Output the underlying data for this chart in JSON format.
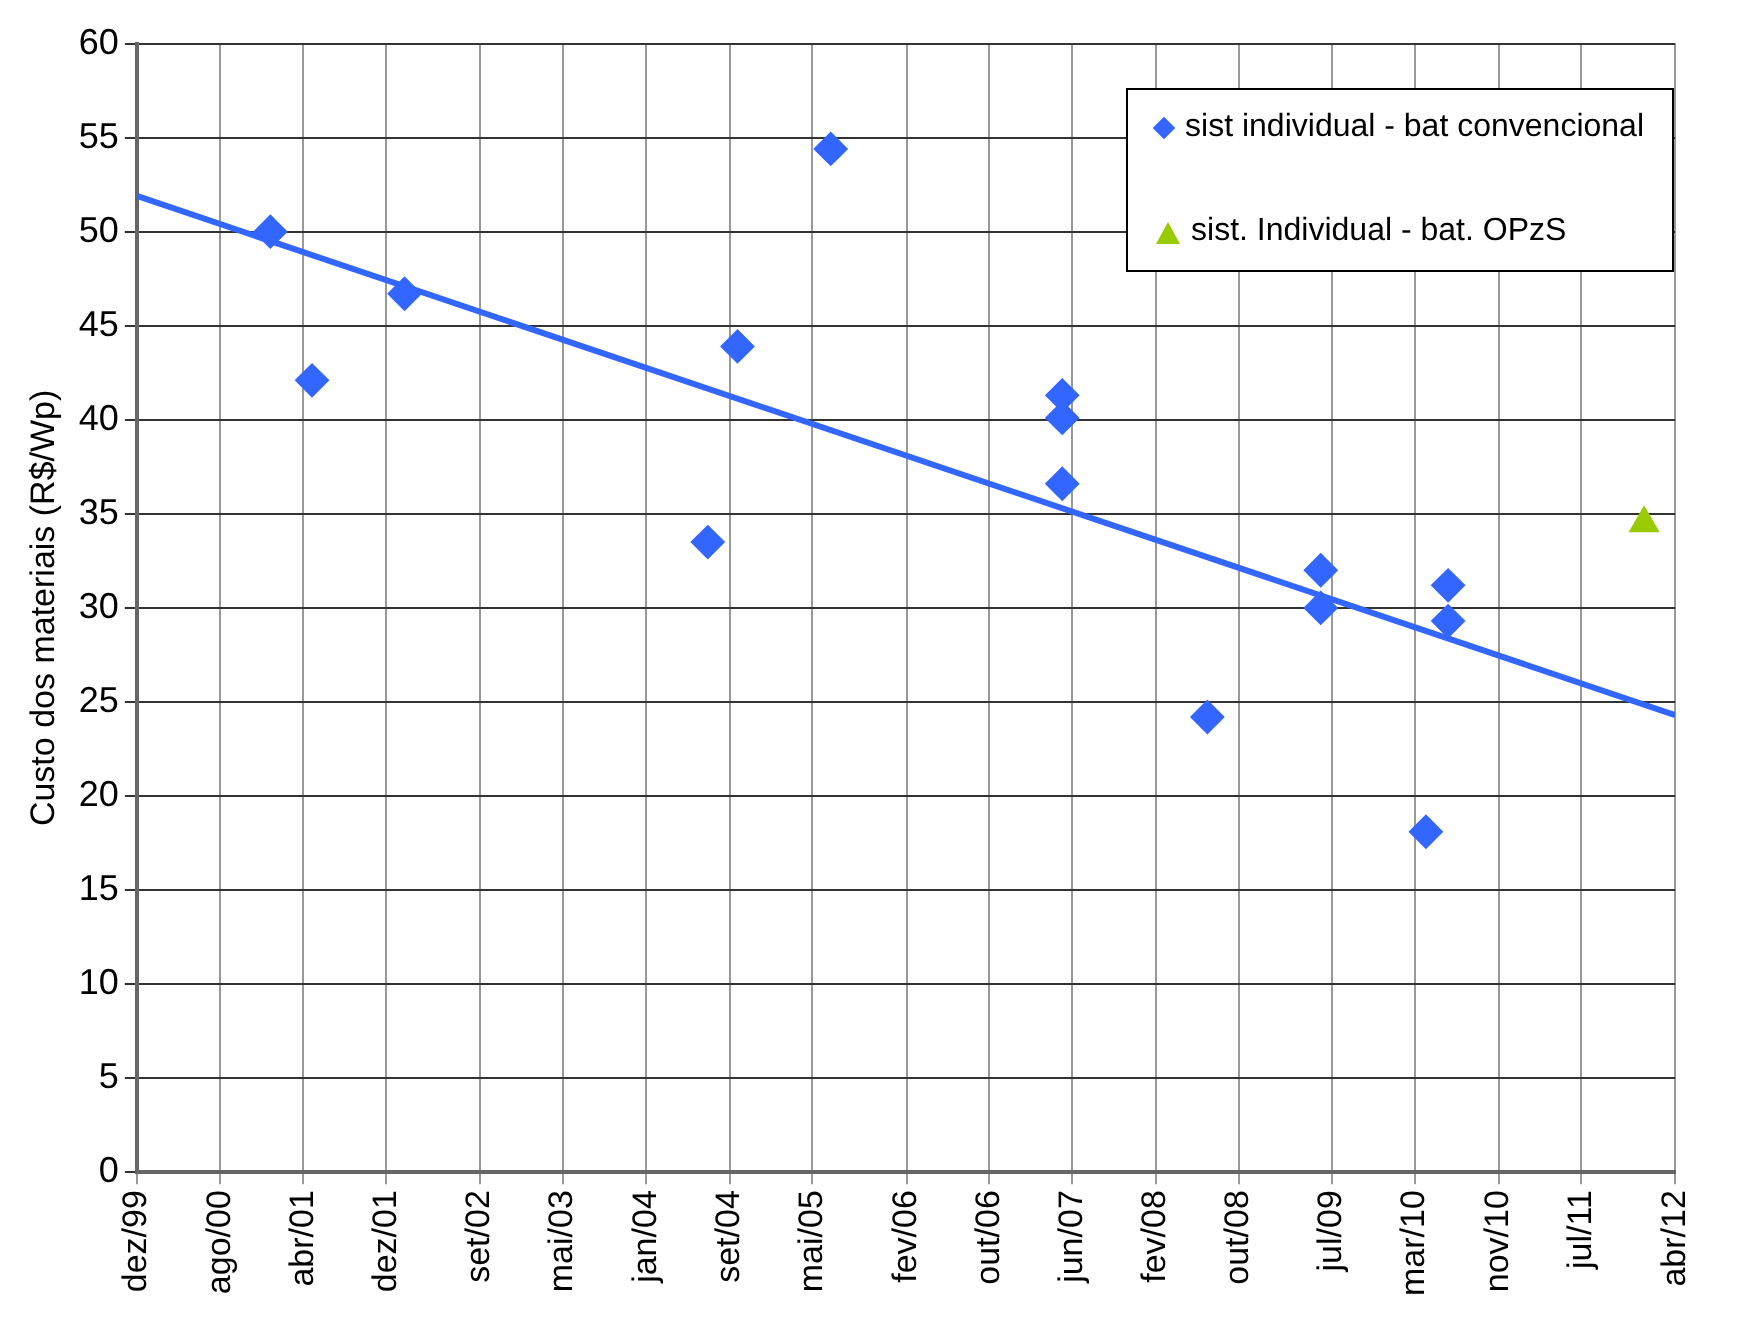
{
  "chart_data": {
    "type": "scatter",
    "ylabel": "Custo dos materiais (R$/Wp)",
    "xlim": [
      "1999-12-01",
      "2012-04-01"
    ],
    "ylim": [
      0,
      60
    ],
    "yticks": [
      0,
      5,
      10,
      15,
      20,
      25,
      30,
      35,
      40,
      45,
      50,
      55,
      60
    ],
    "xticks": [
      {
        "value": "1999-12-01",
        "label": "dez/99"
      },
      {
        "value": "2000-08-01",
        "label": "ago/00"
      },
      {
        "value": "2001-04-01",
        "label": "abr/01"
      },
      {
        "value": "2001-12-01",
        "label": "dez/01"
      },
      {
        "value": "2002-09-01",
        "label": "set/02"
      },
      {
        "value": "2003-05-01",
        "label": "mai/03"
      },
      {
        "value": "2004-01-01",
        "label": "jan/04"
      },
      {
        "value": "2004-09-01",
        "label": "set/04"
      },
      {
        "value": "2005-05-01",
        "label": "mai/05"
      },
      {
        "value": "2006-02-01",
        "label": "fev/06"
      },
      {
        "value": "2006-10-01",
        "label": "out/06"
      },
      {
        "value": "2007-06-01",
        "label": "jun/07"
      },
      {
        "value": "2008-02-01",
        "label": "fev/08"
      },
      {
        "value": "2008-10-01",
        "label": "out/08"
      },
      {
        "value": "2009-07-01",
        "label": "jul/09"
      },
      {
        "value": "2010-03-01",
        "label": "mar/10"
      },
      {
        "value": "2010-11-01",
        "label": "nov/10"
      },
      {
        "value": "2011-07-01",
        "label": "jul/11"
      },
      {
        "value": "2012-04-01",
        "label": "abr/12"
      }
    ],
    "grid": true,
    "legend": "top right",
    "series": [
      {
        "name": "sist individual - bat convencional",
        "marker": "diamond",
        "color": "#3366ff",
        "x": [
          "2000-12-26",
          "2001-04-27",
          "2002-01-23",
          "2004-06-29",
          "2004-09-24",
          "2005-06-24",
          "2007-05-03",
          "2007-05-03",
          "2007-05-03",
          "2008-07-01",
          "2009-05-29",
          "2009-05-29",
          "2010-04-02",
          "2010-06-06",
          "2010-06-06"
        ],
        "values": [
          50.0,
          42.1,
          46.7,
          33.5,
          43.9,
          54.4,
          41.3,
          40.1,
          36.6,
          24.2,
          32.0,
          30.0,
          18.1,
          31.2,
          29.3
        ]
      },
      {
        "name": "sist. Individual - bat. OPzS",
        "marker": "triangle",
        "color": "#99cc00",
        "x": [
          "2012-01-01"
        ],
        "values": [
          34.5
        ]
      },
      {
        "type": "line",
        "marker": "none",
        "color": "#3366ff",
        "x": [
          "1999-12-01",
          "2012-04-01"
        ],
        "values": [
          51.9,
          24.3
        ]
      }
    ]
  }
}
